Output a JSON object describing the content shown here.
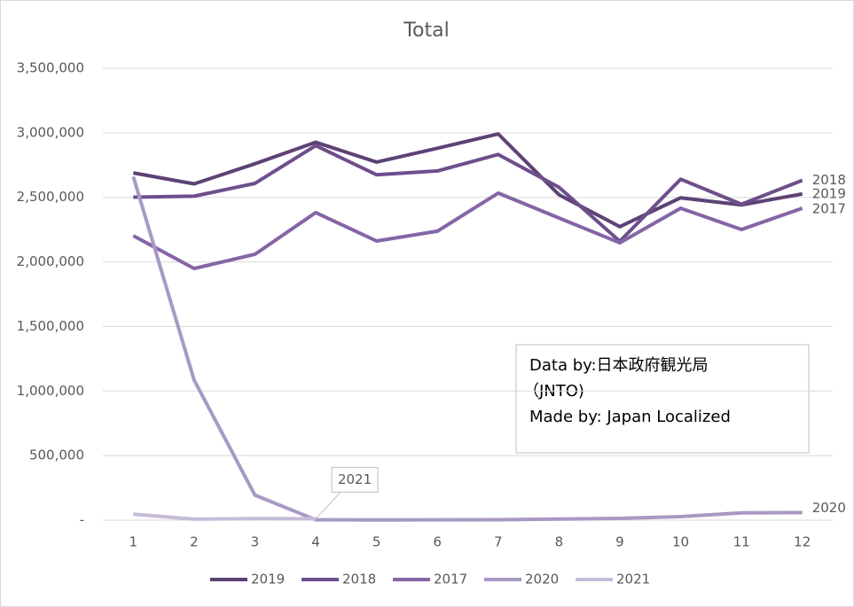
{
  "chart_data": {
    "type": "line",
    "title": "Total",
    "categories": [
      "1",
      "2",
      "3",
      "4",
      "5",
      "6",
      "7",
      "8",
      "9",
      "10",
      "11",
      "12"
    ],
    "series": [
      {
        "name": "2019",
        "color": "#5c4275",
        "values": [
          2689339,
          2604322,
          2760136,
          2926685,
          2773091,
          2880041,
          2991189,
          2520134,
          2272883,
          2496568,
          2441274,
          2526387
        ]
      },
      {
        "name": "2018",
        "color": "#6d4f8c",
        "values": [
          2501409,
          2509297,
          2607956,
          2900718,
          2675052,
          2704631,
          2832040,
          2578021,
          2159600,
          2640612,
          2446679,
          2632012
        ]
      },
      {
        "name": "2017",
        "color": "#8465a6",
        "values": [
          2203000,
          1949000,
          2059000,
          2382000,
          2162000,
          2238000,
          2533000,
          2340000,
          2148000,
          2416000,
          2251000,
          2416000
        ]
      },
      {
        "name": "2020",
        "color": "#a899c4",
        "values": [
          2661022,
          1085147,
          193658,
          2917,
          1663,
          2565,
          3782,
          8658,
          13684,
          27386,
          56673,
          58673
        ]
      },
      {
        "name": "2021",
        "color": "#c6bcd9",
        "values": [
          46461,
          7355,
          12276,
          10898,
          null,
          null,
          null,
          null,
          null,
          null,
          null,
          null
        ]
      }
    ],
    "ylim": [
      0,
      3500000
    ],
    "yticks": [
      {
        "value": 0,
        "label": "-"
      },
      {
        "value": 500000,
        "label": "500,000"
      },
      {
        "value": 1000000,
        "label": "1,000,000"
      },
      {
        "value": 1500000,
        "label": "1,500,000"
      },
      {
        "value": 2000000,
        "label": "2,000,000"
      },
      {
        "value": 2500000,
        "label": "2,500,000"
      },
      {
        "value": 3000000,
        "label": "3,000,000"
      },
      {
        "value": 3500000,
        "label": "3,500,000"
      }
    ],
    "grid": true,
    "legend": "bottom",
    "source_note": [
      "Data by:日本政府観光局",
      "（JNTO)",
      "Made by: Japan Localized"
    ]
  }
}
